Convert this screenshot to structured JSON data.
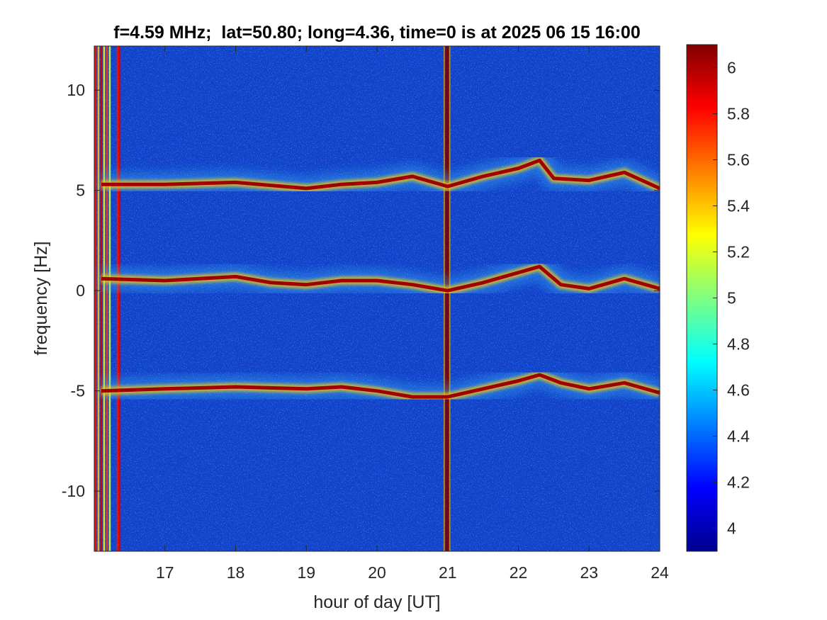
{
  "chart_data": {
    "type": "heatmap",
    "title": "f=4.59 MHz;  lat=50.80; long=4.36, time=0 is at 2025 06 15 16:00",
    "xlabel": "hour of day [UT]",
    "ylabel": "frequency [Hz]",
    "xlim": [
      16,
      24
    ],
    "ylim": [
      -13,
      12.2
    ],
    "x_ticks": [
      17,
      18,
      19,
      20,
      21,
      22,
      23,
      24
    ],
    "x_tick_labels": [
      "17",
      "18",
      "19",
      "20",
      "21",
      "22",
      "23",
      "24"
    ],
    "y_ticks": [
      10,
      5,
      0,
      -5,
      -10
    ],
    "y_tick_labels": [
      "10",
      "5",
      "0",
      "-5",
      "-10"
    ],
    "colorbar": {
      "colormap": "jet",
      "range": [
        3.9,
        6.1
      ],
      "ticks": [
        6,
        5.8,
        5.6,
        5.4,
        5.2,
        5,
        4.8,
        4.6,
        4.4,
        4.2,
        4
      ],
      "tick_labels": [
        "6",
        "5.8",
        "5.6",
        "5.4",
        "5.2",
        "5",
        "4.8",
        "4.6",
        "4.4",
        "4.2",
        "4"
      ]
    },
    "traces": [
      {
        "name": "upper",
        "points": [
          [
            16.1,
            5.3
          ],
          [
            17,
            5.3
          ],
          [
            18,
            5.4
          ],
          [
            19,
            5.1
          ],
          [
            19.5,
            5.3
          ],
          [
            20,
            5.4
          ],
          [
            20.5,
            5.7
          ],
          [
            21,
            5.2
          ],
          [
            21.5,
            5.7
          ],
          [
            22,
            6.1
          ],
          [
            22.3,
            6.5
          ],
          [
            22.5,
            5.6
          ],
          [
            23,
            5.5
          ],
          [
            23.5,
            5.9
          ],
          [
            24,
            5.1
          ]
        ]
      },
      {
        "name": "center",
        "points": [
          [
            16.1,
            0.6
          ],
          [
            17,
            0.5
          ],
          [
            18,
            0.7
          ],
          [
            18.5,
            0.4
          ],
          [
            19,
            0.3
          ],
          [
            19.5,
            0.5
          ],
          [
            20,
            0.5
          ],
          [
            20.5,
            0.3
          ],
          [
            21,
            0.0
          ],
          [
            21.5,
            0.4
          ],
          [
            22,
            0.9
          ],
          [
            22.3,
            1.2
          ],
          [
            22.6,
            0.3
          ],
          [
            23,
            0.1
          ],
          [
            23.5,
            0.6
          ],
          [
            24,
            0.1
          ]
        ]
      },
      {
        "name": "lower",
        "points": [
          [
            16.1,
            -5.0
          ],
          [
            17,
            -4.9
          ],
          [
            18,
            -4.8
          ],
          [
            19,
            -4.9
          ],
          [
            19.5,
            -4.8
          ],
          [
            20,
            -5.0
          ],
          [
            20.5,
            -5.3
          ],
          [
            21,
            -5.3
          ],
          [
            21.5,
            -4.9
          ],
          [
            22,
            -4.5
          ],
          [
            22.3,
            -4.2
          ],
          [
            22.6,
            -4.6
          ],
          [
            23,
            -4.9
          ],
          [
            23.5,
            -4.6
          ],
          [
            24,
            -5.1
          ]
        ]
      }
    ],
    "vertical_features": [
      {
        "x": 16.02,
        "level": 5.8
      },
      {
        "x": 16.06,
        "level": 5.4
      },
      {
        "x": 16.1,
        "level": 5.9
      },
      {
        "x": 16.14,
        "level": 5.3
      },
      {
        "x": 16.18,
        "level": 5.7
      },
      {
        "x": 16.22,
        "level": 5.2
      },
      {
        "x": 16.33,
        "level": 5.8
      },
      {
        "x": 16.36,
        "level": 5.9
      },
      {
        "x": 20.99,
        "level": 6.1
      }
    ]
  }
}
